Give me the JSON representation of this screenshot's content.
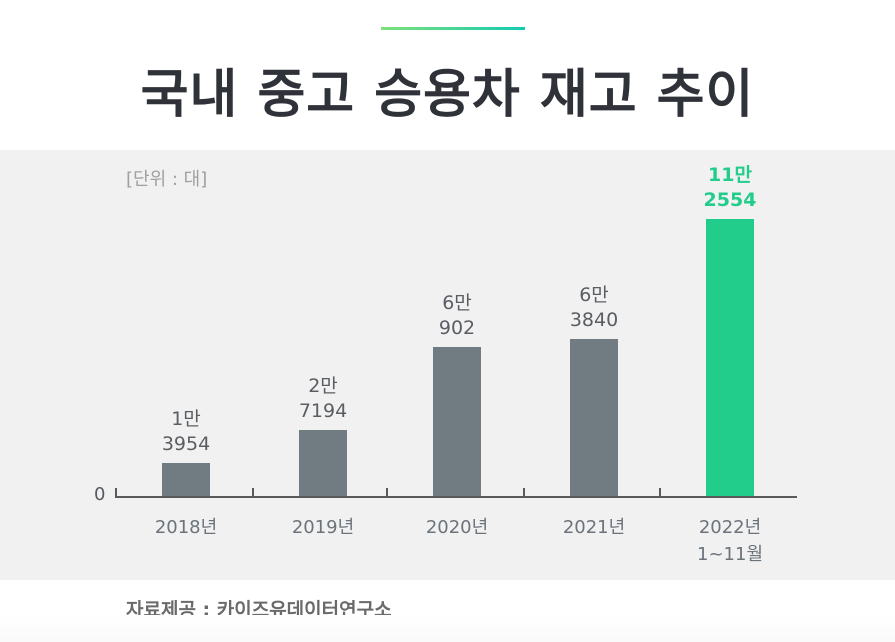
{
  "header": {
    "title": "국내 중고 승용차 재고 추이",
    "accent_gradient": [
      "#7ee07a",
      "#13cbb0"
    ]
  },
  "chart": {
    "unit_label": "[단위 : 대]",
    "zero_label": "0",
    "source": "자료제공 : 카이즈유데이터연구소"
  },
  "colors": {
    "bar_default": "#717b82",
    "bar_highlight": "#22cc8a",
    "panel_bg": "#f1f1f1",
    "title": "#2f3238"
  },
  "bars": [
    {
      "category": "2018년",
      "sub": "",
      "label_line1": "1만",
      "label_line2": "3954",
      "value": 13954,
      "highlight": false
    },
    {
      "category": "2019년",
      "sub": "",
      "label_line1": "2만",
      "label_line2": "7194",
      "value": 27194,
      "highlight": false
    },
    {
      "category": "2020년",
      "sub": "",
      "label_line1": "6만",
      "label_line2": "902",
      "value": 60902,
      "highlight": false
    },
    {
      "category": "2021년",
      "sub": "",
      "label_line1": "6만",
      "label_line2": "3840",
      "value": 63840,
      "highlight": false
    },
    {
      "category": "2022년",
      "sub": "1~11월",
      "label_line1": "11만",
      "label_line2": "2554",
      "value": 112554,
      "highlight": true
    }
  ],
  "chart_data": {
    "type": "bar",
    "title": "국내 중고 승용차 재고 추이",
    "categories": [
      "2018년",
      "2019년",
      "2020년",
      "2021년",
      "2022년 1~11월"
    ],
    "values": [
      13954,
      27194,
      60902,
      63840,
      112554
    ],
    "value_labels": [
      "1만 3954",
      "2만 7194",
      "6만 902",
      "6만 3840",
      "11만 2554"
    ],
    "xlabel": "",
    "ylabel": "",
    "unit": "대",
    "y_ticks": [
      "0"
    ],
    "grid": false,
    "legend": null,
    "highlight_index": 4,
    "source": "자료제공 : 카이즈유데이터연구소"
  }
}
